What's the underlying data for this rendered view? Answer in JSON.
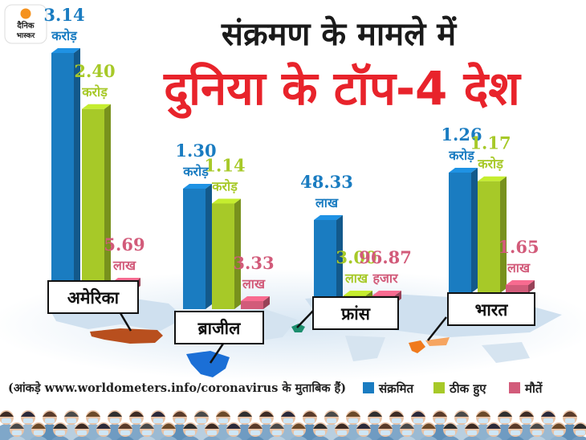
{
  "logo": {
    "line1": "दैनिक",
    "line2": "भास्कर"
  },
  "header": {
    "title": "संक्रमण के मामले में",
    "subtitle": "दुनिया के टॉप-4 देश"
  },
  "colors": {
    "infected": "#1a7cc1",
    "recovered": "#a7c928",
    "deaths": "#d25b7a",
    "title_red": "#e8232b",
    "logo_orange": "#f5921e"
  },
  "source_note": "(आंकड़े www.worldometers.info/coronavirus के मुताबिक हैं)",
  "legend": [
    {
      "label": "संक्रमित",
      "color": "#1a7cc1"
    },
    {
      "label": "ठीक हुए",
      "color": "#a7c928"
    },
    {
      "label": "मौतें",
      "color": "#d25b7a"
    }
  ],
  "chart_data": {
    "type": "bar",
    "title": "संक्रमण के मामले में दुनिया के टॉप-4 देश",
    "categories": [
      "अमेरिका",
      "ब्राजील",
      "फ्रांस",
      "भारत"
    ],
    "series": [
      {
        "name": "संक्रमित",
        "values": [
          31400000,
          13000000,
          4833000,
          12600000
        ],
        "labels": [
          [
            "3.14",
            "करोड़"
          ],
          [
            "1.30",
            "करोड़"
          ],
          [
            "48.33",
            "लाख"
          ],
          [
            "1.26",
            "करोड़"
          ]
        ]
      },
      {
        "name": "ठीक हुए",
        "values": [
          24000000,
          11400000,
          300000,
          11700000
        ],
        "labels": [
          [
            "2.40",
            "करोड़"
          ],
          [
            "1.14",
            "करोड़"
          ],
          [
            "3.00",
            "लाख"
          ],
          [
            "1.17",
            "करोड़"
          ]
        ]
      },
      {
        "name": "मौतें",
        "values": [
          569000,
          333000,
          96870,
          165000
        ],
        "labels": [
          [
            "5.69",
            "लाख"
          ],
          [
            "3.33",
            "लाख"
          ],
          [
            "96.87",
            "हजार"
          ],
          [
            "1.65",
            "लाख"
          ]
        ]
      }
    ]
  }
}
